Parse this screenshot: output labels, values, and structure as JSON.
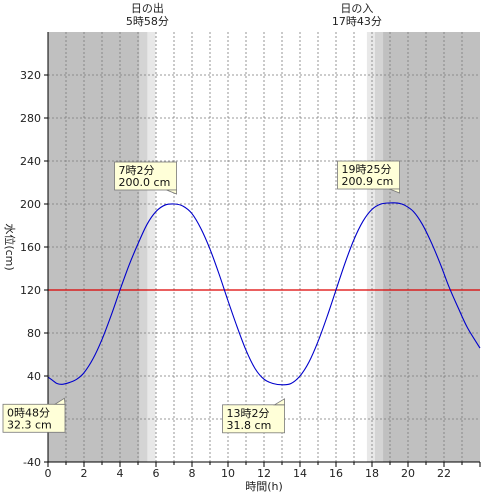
{
  "chart_data": {
    "type": "line",
    "xlabel": "時間(h)",
    "ylabel": "水位(cm)",
    "xlim": [
      0,
      24
    ],
    "ylim": [
      -40,
      360
    ],
    "x_ticks": [
      0,
      2,
      4,
      6,
      8,
      10,
      12,
      14,
      16,
      18,
      20,
      22
    ],
    "x_tick_labels": [
      "0",
      "2",
      "4",
      "6",
      "8",
      "10",
      "12",
      "14",
      "16",
      "18",
      "20",
      "22"
    ],
    "y_ticks": [
      -40,
      0,
      40,
      80,
      120,
      160,
      200,
      240,
      280,
      320
    ],
    "y_tick_labels": [
      "-40",
      "0",
      "40",
      "80",
      "120",
      "160",
      "200",
      "240",
      "280",
      "320"
    ],
    "grid": true,
    "reference_line": {
      "y": 120,
      "color": "#dd0000"
    },
    "line_color": "#0000cc",
    "night_color": "#c0c0c0",
    "sunrise": {
      "label": "日の出",
      "time": "5時58分",
      "hour": 5.967
    },
    "sunset": {
      "label": "日の入",
      "time": "17時43分",
      "hour": 17.717
    },
    "series": [
      {
        "x": [
          0,
          0.25,
          0.5,
          0.8,
          1.2,
          1.6,
          2.0,
          2.5,
          3.0,
          3.5,
          4.0,
          4.5,
          5.0,
          5.5,
          6.0,
          6.5,
          7.03,
          7.5,
          8.0,
          8.5,
          9.0,
          9.5,
          10.0,
          10.5,
          11.0,
          11.5,
          12.0,
          12.5,
          13.03,
          13.5,
          14.0,
          14.5,
          15.0,
          15.5,
          16.0,
          16.5,
          17.0,
          17.5,
          18.0,
          18.5,
          19.0,
          19.42,
          19.8,
          20.3,
          20.8,
          21.3,
          21.8,
          22.3,
          22.8,
          23.3,
          24.0
        ],
        "y": [
          39,
          36,
          33,
          32.3,
          34,
          37,
          43,
          56,
          74,
          96,
          120,
          143,
          163,
          181,
          193,
          199,
          200,
          198,
          191,
          177,
          158,
          135,
          110,
          86,
          64,
          47,
          37,
          33,
          31.8,
          33,
          40,
          53,
          72,
          95,
          120,
          145,
          167,
          184,
          195,
          200,
          201,
          200.9,
          199,
          193,
          181,
          164,
          144,
          122,
          103,
          85,
          66
        ]
      }
    ],
    "annotations": [
      {
        "time": "0時48分",
        "value": "32.3 cm",
        "x": 0.8,
        "y": 32.3,
        "box": "below-left"
      },
      {
        "time": "7時2分",
        "value": "200.0 cm",
        "x": 7.03,
        "y": 200.0,
        "box": "above-left"
      },
      {
        "time": "13時2分",
        "value": "31.8 cm",
        "x": 13.03,
        "y": 31.8,
        "box": "below-left"
      },
      {
        "time": "19時25分",
        "value": "200.9 cm",
        "x": 19.42,
        "y": 200.9,
        "box": "above-left"
      }
    ]
  }
}
